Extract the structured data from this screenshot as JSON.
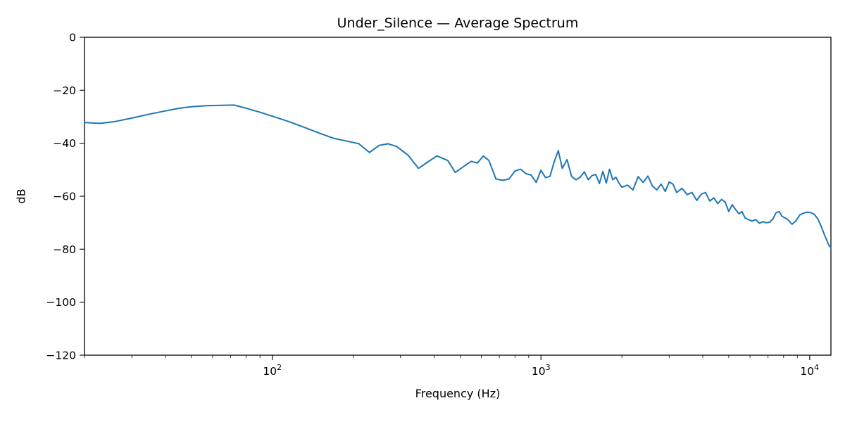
{
  "figure": {
    "background": "#ffffff"
  },
  "chart_data": {
    "type": "line",
    "title": "Under_Silence — Average Spectrum",
    "xlabel": "Frequency (Hz)",
    "ylabel": "dB",
    "xscale": "log",
    "grid": false,
    "legend": "none",
    "xlim": [
      20,
      12000
    ],
    "ylim": [
      -120,
      0
    ],
    "yticks": [
      0,
      -20,
      -40,
      -60,
      -80,
      -100,
      -120
    ],
    "xticks": [
      100,
      1000,
      10000
    ],
    "xtick_labels": [
      "10^2",
      "10^3",
      "10^4"
    ],
    "line_color": "#1f77b4",
    "line_width": 2,
    "series": [
      {
        "name": "average_spectrum",
        "x": [
          20,
          23,
          26,
          30,
          35,
          40,
          45,
          50,
          57,
          65,
          72,
          80,
          90,
          100,
          115,
          130,
          150,
          170,
          190,
          210,
          230,
          250,
          270,
          290,
          320,
          350,
          380,
          410,
          450,
          480,
          520,
          550,
          580,
          610,
          640,
          680,
          720,
          760,
          800,
          840,
          880,
          920,
          960,
          1000,
          1040,
          1080,
          1120,
          1160,
          1200,
          1250,
          1300,
          1350,
          1400,
          1450,
          1500,
          1550,
          1600,
          1650,
          1700,
          1750,
          1800,
          1850,
          1900,
          1950,
          2000,
          2100,
          2200,
          2300,
          2400,
          2500,
          2600,
          2700,
          2800,
          2900,
          3000,
          3100,
          3200,
          3350,
          3500,
          3650,
          3800,
          3950,
          4100,
          4250,
          4400,
          4550,
          4700,
          4850,
          5000,
          5150,
          5300,
          5450,
          5600,
          5750,
          5900,
          6100,
          6300,
          6500,
          6700,
          6900,
          7100,
          7300,
          7500,
          7700,
          7900,
          8100,
          8300,
          8600,
          8900,
          9200,
          9500,
          9800,
          10100,
          10400,
          10700,
          11000,
          11400,
          11800,
          12000
        ],
        "y": [
          -32.2,
          -32.5,
          -31.8,
          -30.5,
          -29.0,
          -27.8,
          -26.8,
          -26.2,
          -25.8,
          -25.7,
          -25.6,
          -26.8,
          -28.3,
          -29.8,
          -31.8,
          -33.8,
          -36.2,
          -38.2,
          -39.2,
          -40.2,
          -43.5,
          -40.8,
          -40.2,
          -41.2,
          -44.5,
          -49.5,
          -47.0,
          -44.8,
          -46.5,
          -51.0,
          -48.5,
          -46.8,
          -47.5,
          -44.8,
          -46.5,
          -53.5,
          -54.0,
          -53.5,
          -50.5,
          -49.8,
          -51.5,
          -52.0,
          -54.8,
          -50.2,
          -53.0,
          -52.5,
          -47.0,
          -42.8,
          -49.5,
          -46.2,
          -52.5,
          -53.8,
          -52.8,
          -50.8,
          -53.8,
          -52.2,
          -51.8,
          -55.2,
          -50.6,
          -55.0,
          -49.8,
          -53.8,
          -52.8,
          -55.0,
          -56.6,
          -55.8,
          -57.6,
          -52.6,
          -54.8,
          -52.4,
          -56.2,
          -57.6,
          -55.4,
          -58.2,
          -54.6,
          -55.4,
          -58.6,
          -57.0,
          -59.4,
          -58.6,
          -61.6,
          -59.2,
          -58.6,
          -61.8,
          -60.6,
          -62.8,
          -61.2,
          -62.2,
          -65.8,
          -63.2,
          -65.0,
          -66.6,
          -65.8,
          -68.2,
          -68.8,
          -69.4,
          -68.8,
          -70.2,
          -69.6,
          -70.0,
          -69.8,
          -68.6,
          -66.2,
          -65.8,
          -67.6,
          -68.2,
          -68.8,
          -70.6,
          -69.2,
          -67.0,
          -66.4,
          -66.0,
          -66.2,
          -66.8,
          -68.4,
          -71.0,
          -75.0,
          -78.5,
          -79.5
        ]
      }
    ]
  }
}
